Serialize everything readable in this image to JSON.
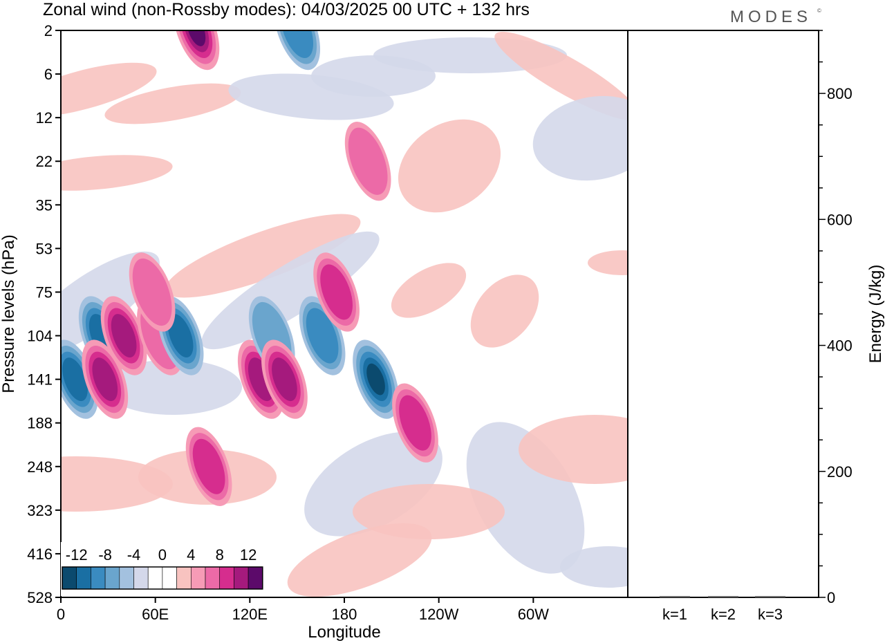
{
  "title": "Zonal wind (non-Rossby modes):  04/03/2025  00 UTC  + 132 hrs",
  "logo": "MODES",
  "chart_data": [
    {
      "type": "heatmap",
      "xlabel": "Longitude",
      "ylabel": "Pressure levels (hPa)",
      "x_ticks": [
        "0",
        "60E",
        "120E",
        "180",
        "120W",
        "60W"
      ],
      "y_ticks": [
        "2",
        "6",
        "12",
        "22",
        "35",
        "53",
        "75",
        "104",
        "141",
        "188",
        "248",
        "323",
        "416",
        "528"
      ],
      "colorbar_labels": [
        "-12",
        "-8",
        "-4",
        "0",
        "4",
        "8",
        "12"
      ],
      "colorbar_colors": [
        "#0b4a6e",
        "#1a6fa3",
        "#3a8bc0",
        "#6aa5cd",
        "#a3c1df",
        "#d4d8ea",
        "#ffffff",
        "#ffffff",
        "#f8c3c0",
        "#f69bb6",
        "#ec6aa7",
        "#d62d8e",
        "#a51a7d",
        "#5c0a6a"
      ],
      "features": [
        {
          "lon": 9,
          "level": 141,
          "value": -8
        },
        {
          "lon": 26,
          "level": 104,
          "value": -8
        },
        {
          "lon": 40,
          "level": 104,
          "value": 8
        },
        {
          "lon": 28,
          "level": 141,
          "value": 8
        },
        {
          "lon": 63,
          "level": 104,
          "value": 4
        },
        {
          "lon": 76,
          "level": 104,
          "value": -8
        },
        {
          "lon": 58,
          "level": 75,
          "value": 4
        },
        {
          "lon": 94,
          "level": 248,
          "value": 6
        },
        {
          "lon": 127,
          "level": 141,
          "value": 8
        },
        {
          "lon": 134,
          "level": 104,
          "value": -4
        },
        {
          "lon": 142,
          "level": 141,
          "value": 8
        },
        {
          "lon": 166,
          "level": 104,
          "value": -6
        },
        {
          "lon": 200,
          "level": 141,
          "value": -10
        },
        {
          "lon": 225,
          "level": 188,
          "value": 6
        },
        {
          "lon": 86,
          "level": 2,
          "value": 10
        },
        {
          "lon": 150,
          "level": 2,
          "value": -6
        },
        {
          "lon": 195,
          "level": 22,
          "value": 4
        },
        {
          "lon": 175,
          "level": 75,
          "value": 6
        }
      ]
    },
    {
      "type": "bar",
      "ylabel": "Energy (J/kg)",
      "categories": [
        "k=1",
        "k=2",
        "k=3"
      ],
      "values": [
        1,
        1,
        1
      ],
      "ylim": [
        0,
        900
      ],
      "y_ticks": [
        0,
        200,
        400,
        600,
        800
      ]
    }
  ]
}
